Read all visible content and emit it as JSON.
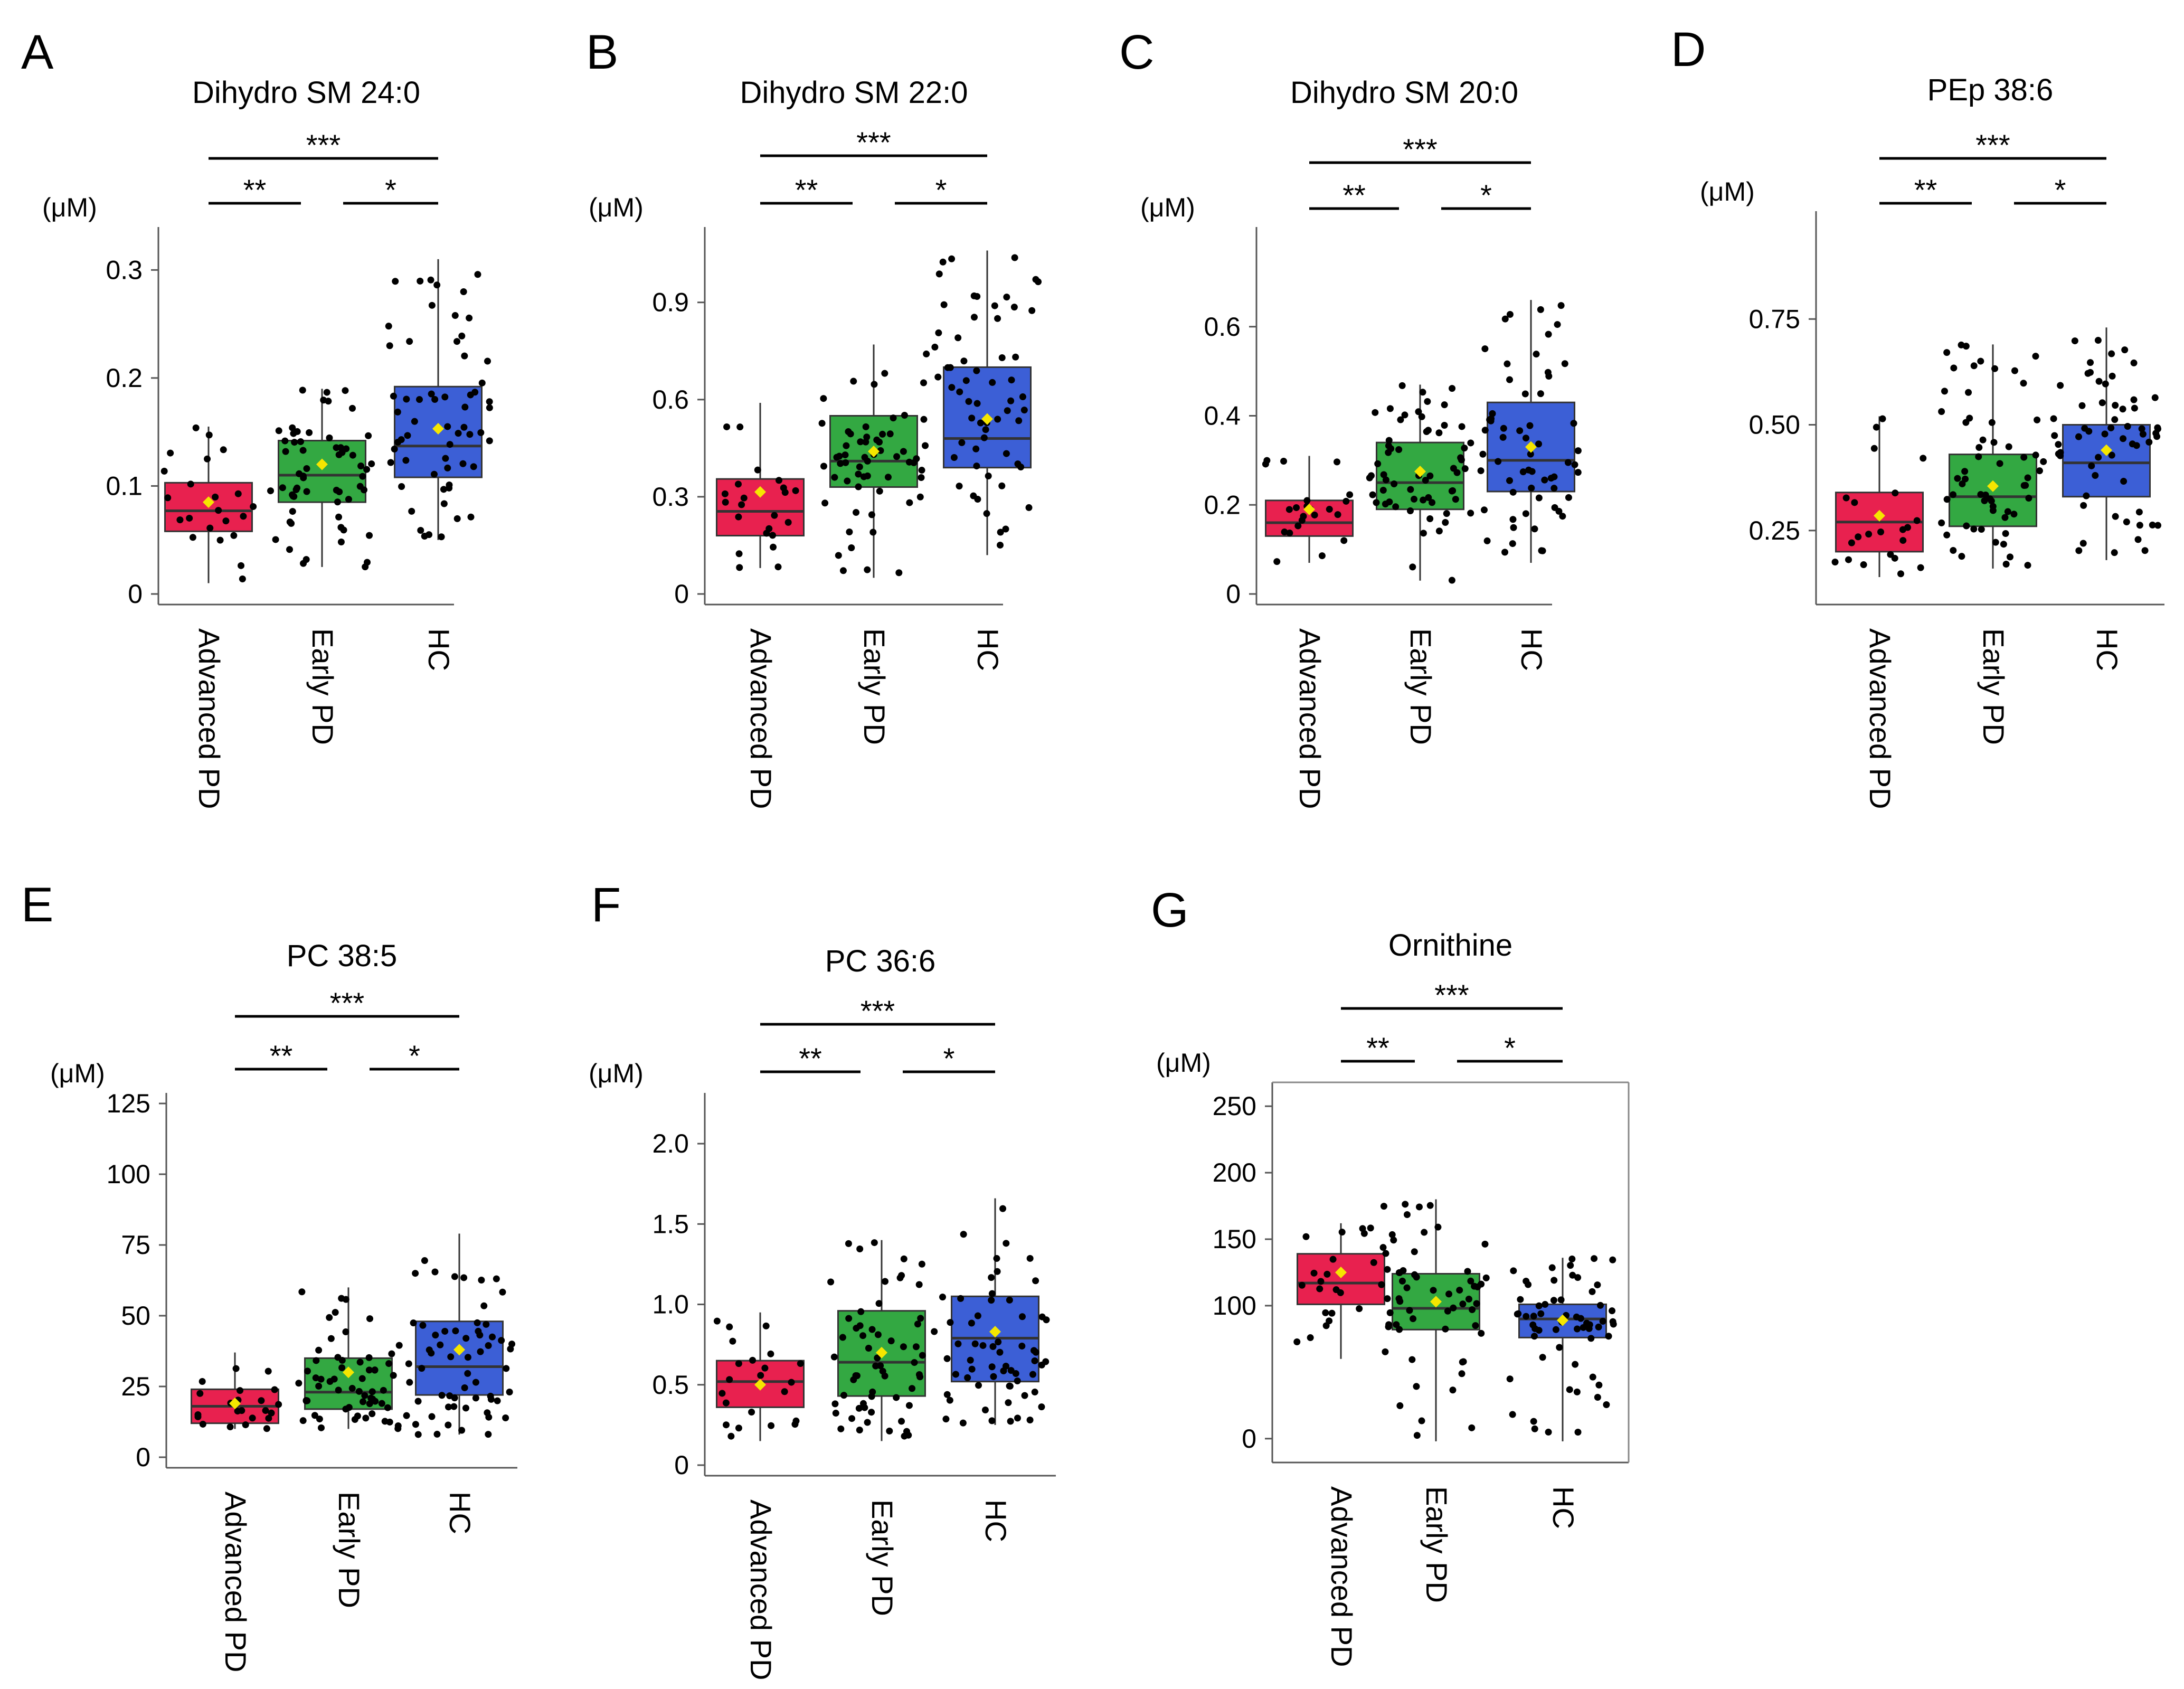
{
  "figure": {
    "categories": [
      "Advanced PD",
      "Early PD",
      "HC"
    ],
    "unit": "(μM)",
    "colors": {
      "Advanced PD": "#e8214f",
      "Early PD": "#33a842",
      "HC": "#3c5fd6",
      "mean": "#f5e600",
      "point": "#000000"
    },
    "significance": {
      "adv_vs_hc": "***",
      "adv_vs_early": "**",
      "early_vs_hc": "*"
    }
  },
  "chart_data": [
    {
      "letter": "A",
      "type": "box",
      "title": "Dihydro SM 24:0",
      "unit": "(μM)",
      "ylim": [
        0,
        0.33
      ],
      "ticks": [
        0,
        0.1,
        0.2,
        0.3
      ],
      "tick_labels": [
        "0",
        "0.1",
        "0.2",
        "0.3"
      ],
      "groups": [
        {
          "name": "Advanced PD",
          "q1": 0.058,
          "median": 0.077,
          "q3": 0.103,
          "wlo": 0.01,
          "whi": 0.155,
          "mean": 0.085,
          "n": 22
        },
        {
          "name": "Early PD",
          "q1": 0.085,
          "median": 0.11,
          "q3": 0.142,
          "wlo": 0.025,
          "whi": 0.19,
          "mean": 0.12,
          "n": 60
        },
        {
          "name": "HC",
          "q1": 0.108,
          "median": 0.137,
          "q3": 0.192,
          "wlo": 0.05,
          "whi": 0.31,
          "mean": 0.153,
          "n": 60
        }
      ]
    },
    {
      "letter": "B",
      "type": "box",
      "title": "Dihydro SM 22:0",
      "unit": "(μM)",
      "ylim": [
        0,
        1.1
      ],
      "ticks": [
        0,
        0.3,
        0.6,
        0.9
      ],
      "tick_labels": [
        "0",
        "0.3",
        "0.6",
        "0.9"
      ],
      "groups": [
        {
          "name": "Advanced PD",
          "q1": 0.18,
          "median": 0.255,
          "q3": 0.355,
          "wlo": 0.08,
          "whi": 0.59,
          "mean": 0.315,
          "n": 22
        },
        {
          "name": "Early PD",
          "q1": 0.33,
          "median": 0.41,
          "q3": 0.55,
          "wlo": 0.05,
          "whi": 0.77,
          "mean": 0.44,
          "n": 60
        },
        {
          "name": "HC",
          "q1": 0.39,
          "median": 0.48,
          "q3": 0.7,
          "wlo": 0.12,
          "whi": 1.06,
          "mean": 0.54,
          "n": 60
        }
      ]
    },
    {
      "letter": "C",
      "type": "box",
      "title": "Dihydro SM 20:0",
      "unit": "(μM)",
      "ylim": [
        0,
        0.8
      ],
      "ticks": [
        0,
        0.2,
        0.4,
        0.6
      ],
      "tick_labels": [
        "0",
        "0.2",
        "0.4",
        "0.6"
      ],
      "groups": [
        {
          "name": "Advanced PD",
          "q1": 0.13,
          "median": 0.16,
          "q3": 0.21,
          "wlo": 0.07,
          "whi": 0.31,
          "mean": 0.19,
          "n": 22
        },
        {
          "name": "Early PD",
          "q1": 0.19,
          "median": 0.25,
          "q3": 0.34,
          "wlo": 0.03,
          "whi": 0.47,
          "mean": 0.275,
          "n": 60
        },
        {
          "name": "HC",
          "q1": 0.23,
          "median": 0.3,
          "q3": 0.43,
          "wlo": 0.07,
          "whi": 0.66,
          "mean": 0.33,
          "n": 60
        }
      ]
    },
    {
      "letter": "D",
      "type": "box",
      "title": "PEp 38:6",
      "unit": "(μM)",
      "ylim": [
        0.1,
        0.98
      ],
      "ticks": [
        0.25,
        0.5,
        0.75
      ],
      "tick_labels": [
        "0.25",
        "0.50",
        "0.75"
      ],
      "groups": [
        {
          "name": "Advanced PD",
          "q1": 0.2,
          "median": 0.27,
          "q3": 0.34,
          "wlo": 0.14,
          "whi": 0.52,
          "mean": 0.285,
          "n": 22
        },
        {
          "name": "Early PD",
          "q1": 0.26,
          "median": 0.33,
          "q3": 0.43,
          "wlo": 0.16,
          "whi": 0.69,
          "mean": 0.355,
          "n": 60
        },
        {
          "name": "HC",
          "q1": 0.33,
          "median": 0.41,
          "q3": 0.5,
          "wlo": 0.18,
          "whi": 0.73,
          "mean": 0.44,
          "n": 60
        }
      ]
    },
    {
      "letter": "E",
      "type": "box",
      "title": "PC 38:5",
      "unit": "(μM)",
      "ylim": [
        0,
        125
      ],
      "ticks": [
        0,
        25,
        50,
        75,
        100,
        125
      ],
      "tick_labels": [
        "0",
        "25",
        "50",
        "75",
        "100",
        "125"
      ],
      "groups": [
        {
          "name": "Advanced PD",
          "q1": 12,
          "median": 18,
          "q3": 24,
          "wlo": 10,
          "whi": 37,
          "mean": 19,
          "n": 22
        },
        {
          "name": "Early PD",
          "q1": 17,
          "median": 23,
          "q3": 35,
          "wlo": 10,
          "whi": 60,
          "mean": 30,
          "n": 60
        },
        {
          "name": "HC",
          "q1": 22,
          "median": 32,
          "q3": 48,
          "wlo": 8,
          "whi": 79,
          "mean": 38,
          "n": 60
        }
      ]
    },
    {
      "letter": "F",
      "type": "box",
      "title": "PC 36:6",
      "unit": "(μM)",
      "ylim": [
        0,
        2.25
      ],
      "ticks": [
        0,
        0.5,
        1.0,
        1.5,
        2.0
      ],
      "tick_labels": [
        "0",
        "0.5",
        "1.0",
        "1.5",
        "2.0"
      ],
      "groups": [
        {
          "name": "Advanced PD",
          "q1": 0.36,
          "median": 0.52,
          "q3": 0.65,
          "wlo": 0.15,
          "whi": 0.95,
          "mean": 0.5,
          "n": 22
        },
        {
          "name": "Early PD",
          "q1": 0.43,
          "median": 0.64,
          "q3": 0.96,
          "wlo": 0.15,
          "whi": 1.4,
          "mean": 0.7,
          "n": 60
        },
        {
          "name": "HC",
          "q1": 0.52,
          "median": 0.79,
          "q3": 1.05,
          "wlo": 0.25,
          "whi": 1.66,
          "mean": 0.83,
          "n": 60
        }
      ]
    },
    {
      "letter": "G",
      "type": "box",
      "title": "Ornithine",
      "unit": "(μM)",
      "ylim": [
        -10,
        260
      ],
      "ticks": [
        0,
        50,
        100,
        150,
        200,
        250
      ],
      "tick_labels": [
        "0",
        "100",
        "150",
        "200",
        "250"
      ],
      "tick_values_labeled": [
        0,
        100,
        150,
        200,
        250
      ],
      "groups": [
        {
          "name": "Advanced PD",
          "q1": 101,
          "median": 117,
          "q3": 139,
          "wlo": 60,
          "whi": 162,
          "mean": 125,
          "n": 22
        },
        {
          "name": "Early PD",
          "q1": 82,
          "median": 98,
          "q3": 124,
          "wlo": -2,
          "whi": 180,
          "mean": 103,
          "n": 60
        },
        {
          "name": "HC",
          "q1": 76,
          "median": 90,
          "q3": 101,
          "wlo": -2,
          "whi": 136,
          "mean": 89,
          "n": 60
        }
      ]
    }
  ]
}
